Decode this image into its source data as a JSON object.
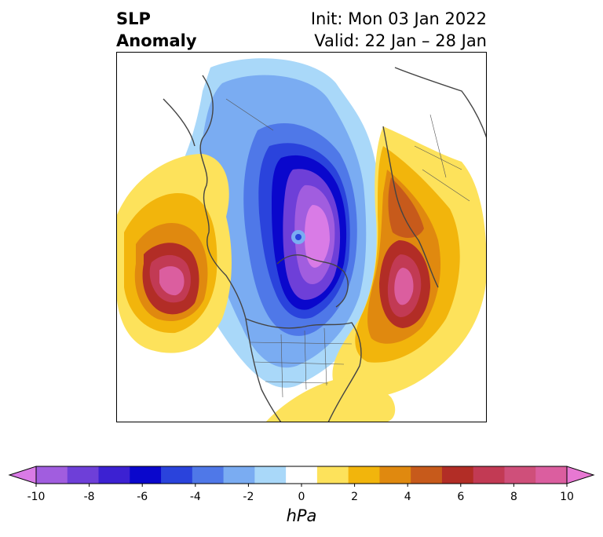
{
  "header": {
    "variable_line1": "SLP",
    "variable_line2": "Anomaly",
    "init": "Init: Mon 03 Jan 2022",
    "valid": "Valid: 22 Jan – 28 Jan"
  },
  "map": {
    "projection": "north polar stereographic",
    "features": {
      "negative_center": "Arctic / northern Canada, minimum below -10 hPa",
      "positive_center_pacific": "North Pacific, maximum above 10 hPa",
      "positive_center_atlantic": "North Atlantic / western Europe, maximum near 10 hPa"
    }
  },
  "colorbar": {
    "unit": "hPa",
    "ticks": [
      "-10",
      "-8",
      "-6",
      "-4",
      "-2",
      "0",
      "2",
      "4",
      "6",
      "8",
      "10"
    ],
    "extend": "both",
    "colors": [
      "#d97be6",
      "#a15ddf",
      "#6e3fd8",
      "#3c21d2",
      "#0a07cc",
      "#2a43dc",
      "#4f78e8",
      "#7aacf2",
      "#a9d8f9",
      "#ffffff",
      "#fde25b",
      "#f2b50c",
      "#e0890f",
      "#c75a1b",
      "#b22d26",
      "#c23a54",
      "#cf4f7a",
      "#db5e9f",
      "#e778d2"
    ]
  }
}
